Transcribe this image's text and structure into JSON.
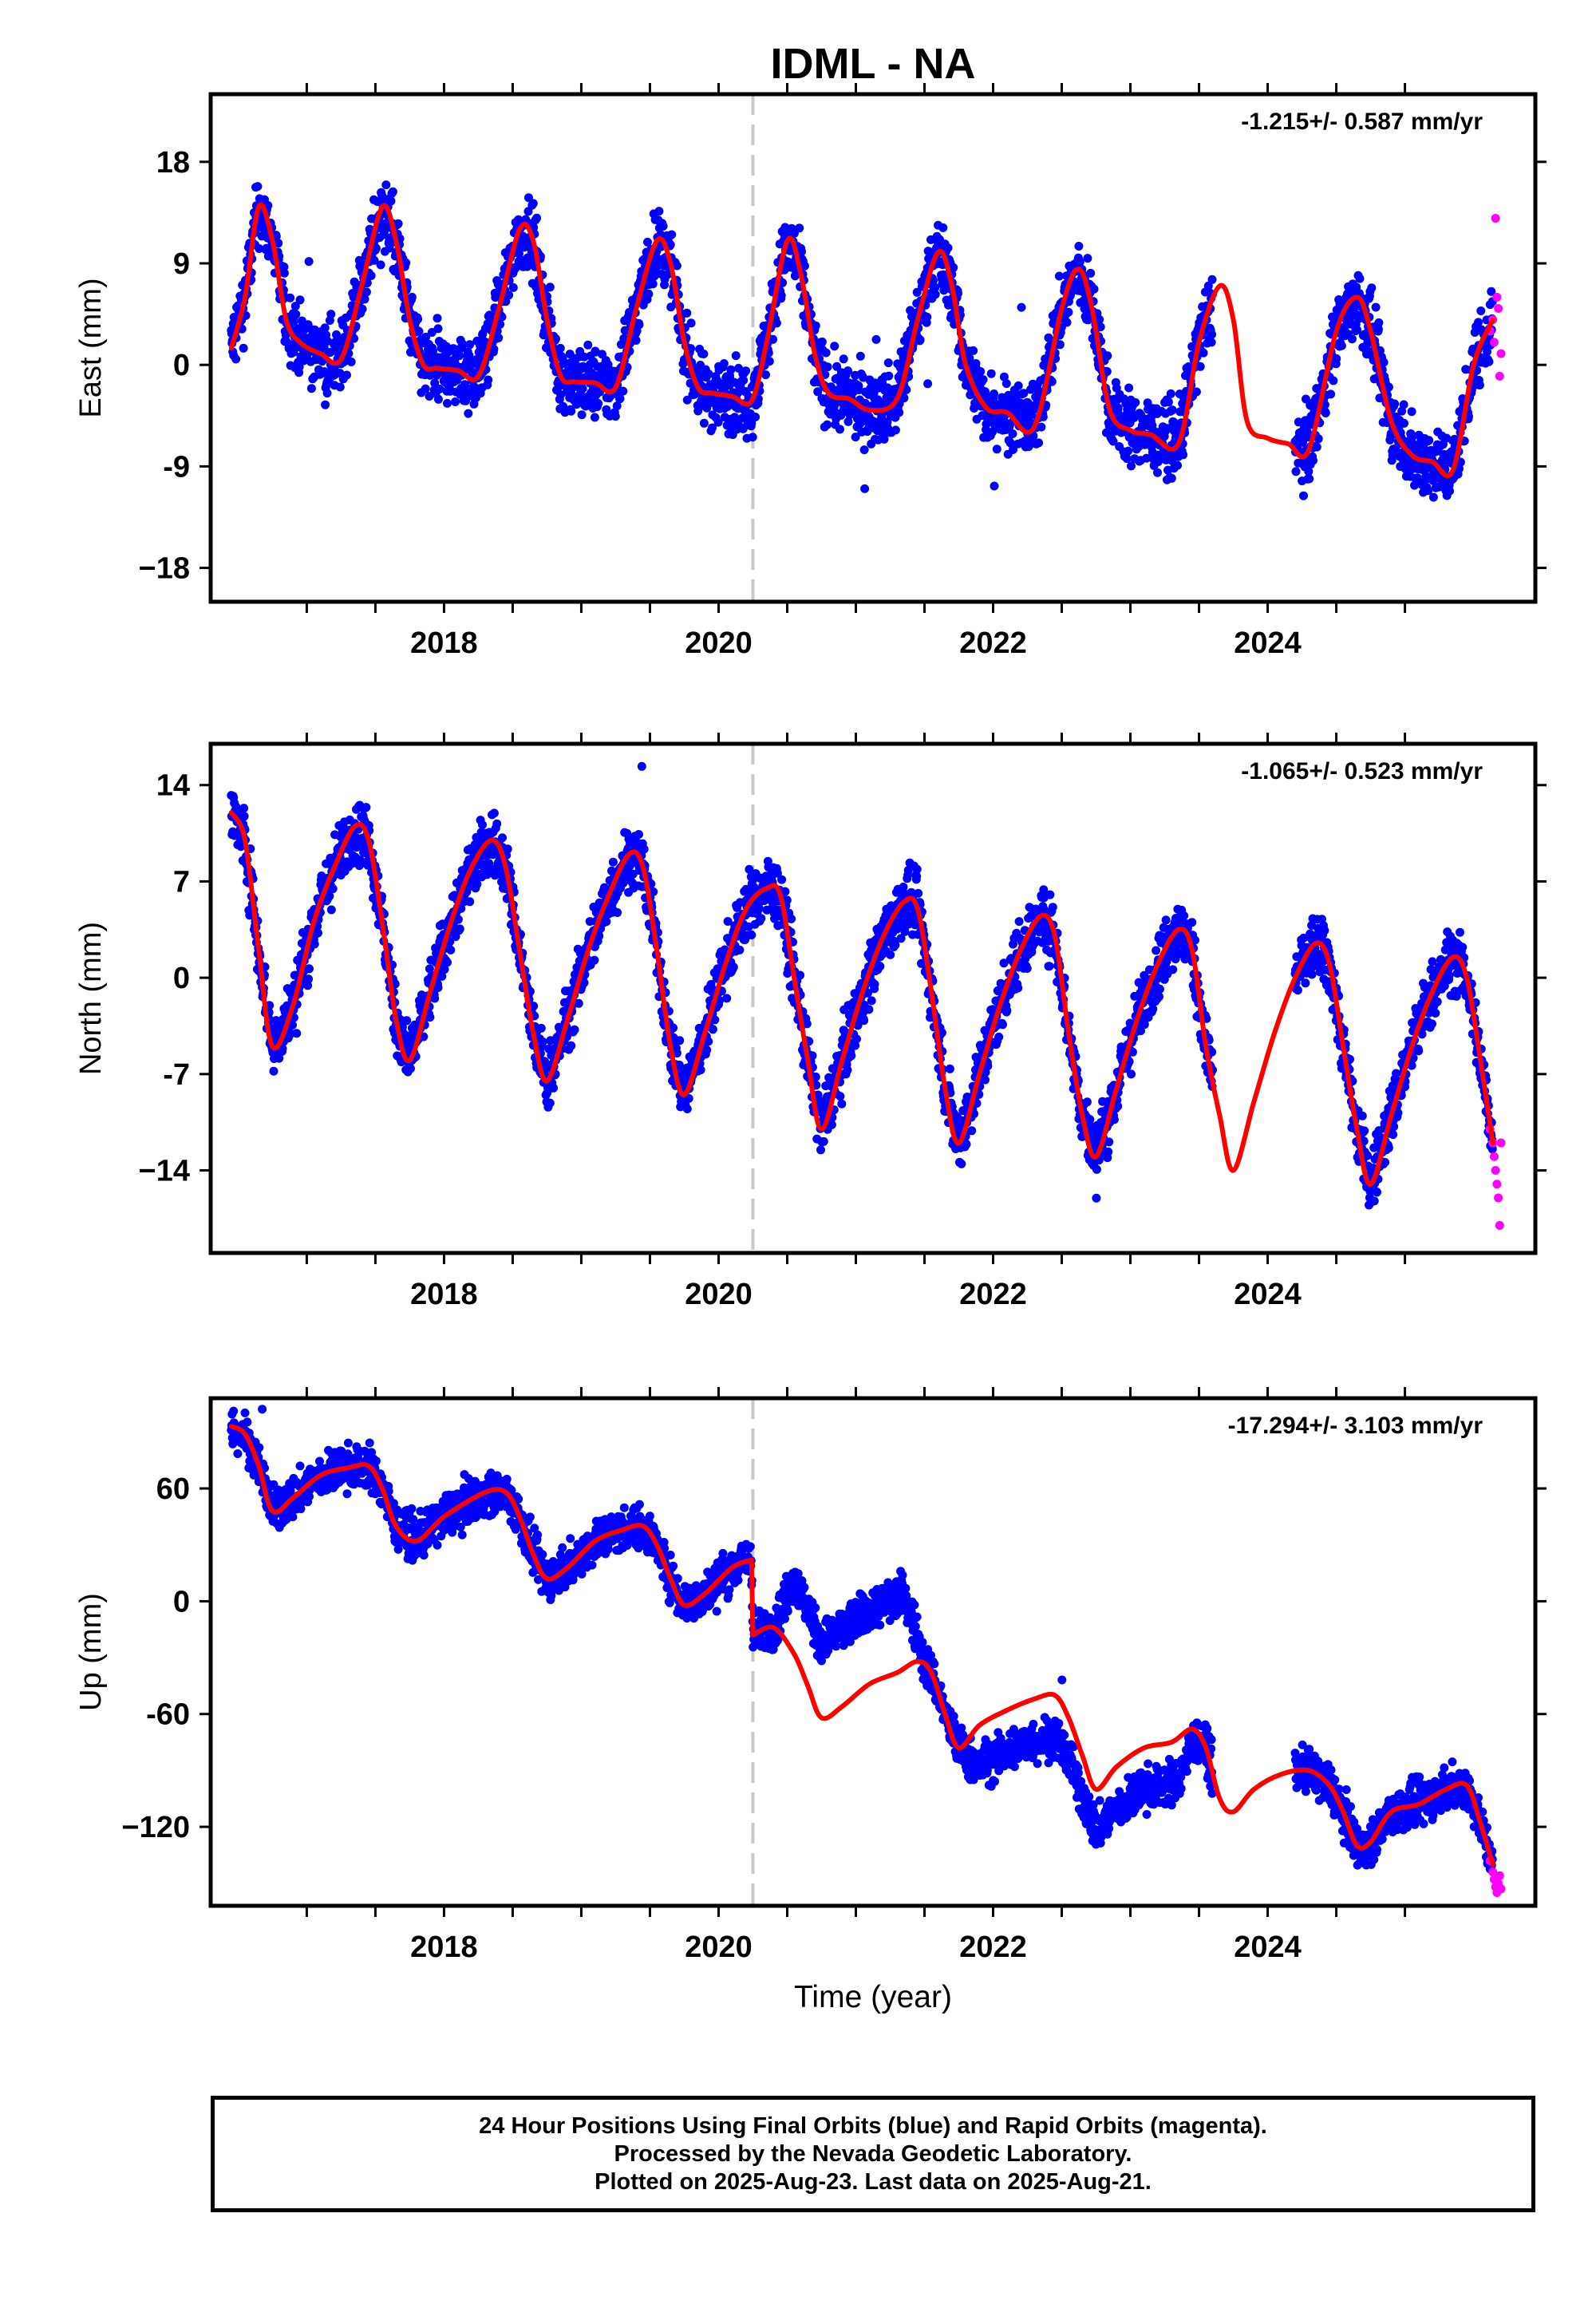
{
  "title": "IDML - NA",
  "xlabel": "Time (year)",
  "colors": {
    "final": "#0000ff",
    "rapid": "#ff00ff",
    "model": "#ff0000",
    "event": "#c8c8c8",
    "frame": "#000000"
  },
  "footer": {
    "line1": "24 Hour Positions Using Final Orbits (blue) and Rapid Orbits (magenta).",
    "line2": "Processed by the Nevada Geodetic Laboratory.",
    "line3": "Plotted on 2025-Aug-23. Last data on 2025-Aug-21."
  },
  "chart_data": [
    {
      "type": "scatter",
      "component": "east",
      "ylabel": "East (mm)",
      "rate": "-1.215+/- 0.587 mm/yr",
      "xlim": [
        2016.3,
        2025.95
      ],
      "ylim": [
        -21,
        24
      ],
      "yticks": [
        18,
        9,
        0,
        -9,
        -18
      ],
      "ytick_labels": [
        "18",
        "9",
        "0",
        "-9",
        "−18"
      ],
      "xticks": [
        2018,
        2020,
        2022,
        2024
      ],
      "grid": false,
      "event_x": 2020.25,
      "data_start": 2016.45,
      "data_end": 2025.64,
      "gap": [
        2023.6,
        2024.2
      ],
      "series": [
        {
          "name": "model",
          "x": [
            2016.45,
            2016.55,
            2016.65,
            2016.75,
            2016.85,
            2016.95,
            2017.1,
            2017.25,
            2017.4,
            2017.55,
            2017.65,
            2017.75,
            2017.85,
            2017.95,
            2018.1,
            2018.25,
            2018.4,
            2018.55,
            2018.65,
            2018.75,
            2018.85,
            2018.95,
            2019.1,
            2019.25,
            2019.4,
            2019.55,
            2019.65,
            2019.75,
            2019.85,
            2019.95,
            2020.1,
            2020.24,
            2020.35,
            2020.5,
            2020.6,
            2020.7,
            2020.8,
            2020.95,
            2021.1,
            2021.3,
            2021.45,
            2021.6,
            2021.7,
            2021.8,
            2021.95,
            2022.1,
            2022.3,
            2022.5,
            2022.62,
            2022.72,
            2022.85,
            2023.0,
            2023.15,
            2023.35,
            2023.5,
            2023.65,
            2023.75,
            2023.85,
            2024.0,
            2024.15,
            2024.3,
            2024.5,
            2024.65,
            2024.75,
            2024.9,
            2025.05,
            2025.2,
            2025.35,
            2025.5,
            2025.64
          ],
          "y": [
            1.5,
            6,
            14,
            11,
            4,
            2,
            1,
            0.5,
            7,
            14,
            11,
            4,
            0,
            -0.3,
            -0.5,
            -1,
            5,
            12,
            11,
            4,
            -1,
            -1.5,
            -1.6,
            -2,
            5,
            11,
            9,
            2,
            -2,
            -2.5,
            -2.8,
            -3.2,
            2,
            11,
            8,
            1,
            -2.5,
            -3,
            -4,
            -3,
            4,
            10,
            7,
            0,
            -3.8,
            -4.2,
            -5.5,
            5,
            8.5,
            5,
            -4,
            -5.8,
            -6.2,
            -7,
            2,
            7,
            4,
            -5,
            -6.5,
            -7,
            -7.5,
            3,
            6,
            3,
            -5,
            -8,
            -8.6,
            -9.3,
            0,
            4
          ]
        },
        {
          "name": "final",
          "points": "generated",
          "count": 3300
        },
        {
          "name": "rapid",
          "x": [
            2025.62,
            2025.64,
            2025.65,
            2025.66,
            2025.67,
            2025.68,
            2025.69,
            2025.7
          ],
          "y": [
            3,
            4,
            2,
            13,
            6,
            5,
            -1,
            1
          ]
        }
      ]
    },
    {
      "type": "scatter",
      "component": "north",
      "ylabel": "North (mm)",
      "rate": "-1.065+/- 0.523 mm/yr",
      "xlim": [
        2016.3,
        2025.95
      ],
      "ylim": [
        -20,
        17
      ],
      "yticks": [
        14,
        7,
        0,
        -7,
        -14
      ],
      "ytick_labels": [
        "14",
        "7",
        "0",
        "-7",
        "−14"
      ],
      "xticks": [
        2018,
        2020,
        2022,
        2024
      ],
      "grid": false,
      "event_x": 2020.25,
      "data_start": 2016.45,
      "data_end": 2025.64,
      "gap": [
        2023.6,
        2024.2
      ],
      "series": [
        {
          "name": "model",
          "x": [
            2016.45,
            2016.55,
            2016.65,
            2016.75,
            2016.9,
            2017.05,
            2017.2,
            2017.35,
            2017.45,
            2017.55,
            2017.65,
            2017.75,
            2017.9,
            2018.05,
            2018.2,
            2018.35,
            2018.45,
            2018.55,
            2018.65,
            2018.75,
            2018.9,
            2019.05,
            2019.2,
            2019.35,
            2019.45,
            2019.55,
            2019.65,
            2019.75,
            2019.9,
            2020.05,
            2020.2,
            2020.35,
            2020.45,
            2020.55,
            2020.65,
            2020.75,
            2020.9,
            2021.05,
            2021.2,
            2021.35,
            2021.45,
            2021.55,
            2021.65,
            2021.75,
            2021.9,
            2022.05,
            2022.2,
            2022.35,
            2022.45,
            2022.55,
            2022.65,
            2022.75,
            2022.9,
            2023.05,
            2023.2,
            2023.35,
            2023.45,
            2023.55,
            2023.65,
            2023.75,
            2023.9,
            2024.05,
            2024.2,
            2024.35,
            2024.45,
            2024.55,
            2024.65,
            2024.75,
            2024.9,
            2025.05,
            2025.2,
            2025.35,
            2025.45,
            2025.55,
            2025.64
          ],
          "y": [
            12,
            10,
            2,
            -5,
            -2,
            4,
            8,
            11,
            10,
            4,
            -3,
            -6,
            -1,
            4,
            8,
            10,
            8,
            2,
            -4,
            -7.5,
            -3,
            2,
            6,
            9,
            8,
            2,
            -5,
            -8.5,
            -4,
            1,
            5,
            6.5,
            6,
            0,
            -6,
            -11,
            -6,
            -1,
            3,
            5.5,
            5,
            -1,
            -8,
            -12,
            -7,
            -2,
            2,
            4.5,
            3,
            -4,
            -10,
            -13,
            -8,
            -3,
            1,
            3.5,
            2,
            -5,
            -10,
            -14,
            -9,
            -4,
            0,
            2.5,
            1,
            -5,
            -11,
            -15,
            -10,
            -5,
            -1,
            1.5,
            0,
            -6,
            -12
          ]
        },
        {
          "name": "final",
          "points": "generated",
          "count": 3300
        },
        {
          "name": "rapid",
          "x": [
            2025.62,
            2025.64,
            2025.65,
            2025.66,
            2025.67,
            2025.68,
            2025.69,
            2025.7
          ],
          "y": [
            -11,
            -12,
            -13,
            -14,
            -15,
            -16,
            -18,
            -12
          ]
        }
      ]
    },
    {
      "type": "scatter",
      "component": "up",
      "ylabel": "Up (mm)",
      "rate": "-17.294+/- 3.103 mm/yr",
      "xlim": [
        2016.3,
        2025.95
      ],
      "ylim": [
        -162,
        108
      ],
      "yticks": [
        60,
        0,
        -60,
        -120
      ],
      "ytick_labels": [
        "60",
        "0",
        "-60",
        "−120"
      ],
      "xticks": [
        2018,
        2020,
        2022,
        2024
      ],
      "grid": false,
      "event_x": 2020.25,
      "data_start": 2016.45,
      "data_end": 2025.64,
      "gap": [
        2023.6,
        2024.2
      ],
      "series": [
        {
          "name": "model",
          "x": [
            2016.45,
            2016.55,
            2016.65,
            2016.75,
            2016.9,
            2017.1,
            2017.3,
            2017.45,
            2017.55,
            2017.65,
            2017.8,
            2018.0,
            2018.3,
            2018.45,
            2018.55,
            2018.65,
            2018.75,
            2018.9,
            2019.1,
            2019.3,
            2019.45,
            2019.55,
            2019.65,
            2019.75,
            2019.9,
            2020.1,
            2020.24,
            2020.25,
            2020.4,
            2020.55,
            2020.65,
            2020.75,
            2020.9,
            2021.1,
            2021.3,
            2021.45,
            2021.55,
            2021.65,
            2021.75,
            2021.9,
            2022.1,
            2022.3,
            2022.45,
            2022.55,
            2022.65,
            2022.75,
            2022.9,
            2023.1,
            2023.3,
            2023.45,
            2023.55,
            2023.65,
            2023.75,
            2023.9,
            2024.1,
            2024.3,
            2024.45,
            2024.55,
            2024.65,
            2024.75,
            2024.9,
            2025.1,
            2025.3,
            2025.45,
            2025.55,
            2025.64
          ],
          "y": [
            93,
            89,
            72,
            48,
            55,
            67,
            71,
            72,
            60,
            40,
            32,
            45,
            58,
            58,
            45,
            25,
            12,
            18,
            32,
            38,
            40,
            30,
            12,
            -2,
            4,
            18,
            22,
            -18,
            -14,
            -28,
            -45,
            -62,
            -56,
            -44,
            -38,
            -32,
            -38,
            -60,
            -78,
            -66,
            -58,
            -52,
            -50,
            -62,
            -82,
            -100,
            -88,
            -78,
            -75,
            -68,
            -78,
            -105,
            -112,
            -100,
            -92,
            -90,
            -98,
            -112,
            -130,
            -128,
            -112,
            -108,
            -100,
            -98,
            -118,
            -140
          ]
        },
        {
          "name": "final",
          "points": "generated",
          "count": 3300
        },
        {
          "name": "rapid",
          "x": [
            2025.62,
            2025.64,
            2025.65,
            2025.66,
            2025.67,
            2025.68,
            2025.69,
            2025.7
          ],
          "y": [
            -138,
            -144,
            -148,
            -152,
            -155,
            -150,
            -146,
            -153
          ]
        }
      ]
    }
  ]
}
